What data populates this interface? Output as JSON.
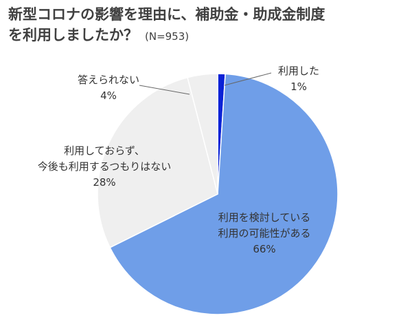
{
  "chart_data": {
    "type": "pie",
    "title": "新型コロナの影響を理由に、補助金・助成金制度を利用しましたか？",
    "title_lines": [
      "新型コロナの影響を理由に、補助金・助成金制度",
      "を利用しましたか？"
    ],
    "subtitle": "(N=953)",
    "start_angle_deg": 0,
    "direction": "clockwise",
    "legend": "none",
    "slices": [
      {
        "label_lines": [
          "利用した"
        ],
        "value": 1,
        "value_label": "1%",
        "color": "#0a22d6"
      },
      {
        "label_lines": [
          "利用を検討している",
          "利用の可能性がある"
        ],
        "value": 66,
        "value_label": "66%",
        "color": "#6f9ee8"
      },
      {
        "label_lines": [
          "利用しておらず、",
          "今後も利用するつもりはない"
        ],
        "value": 28,
        "value_label": "28%",
        "color": "#efefef"
      },
      {
        "label_lines": [
          "答えられない"
        ],
        "value": 4,
        "value_label": "4%",
        "color": "#efefef"
      }
    ]
  }
}
